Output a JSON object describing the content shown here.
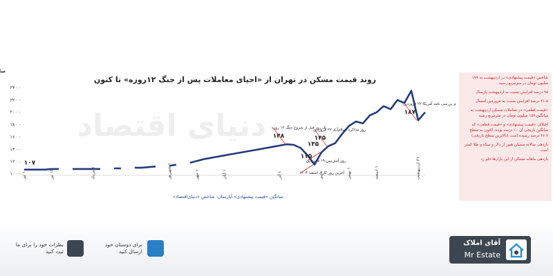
{
  "chart_data": {
    "type": "line",
    "title": "روند قیمت مسکن در تهران از «احیای معاملات پس از جنگ ۱۲روزه» تا کنون",
    "y_label": "میلیون تومان",
    "source": "میانگین «قیمت پیشنهادی» آپارتمان- شاخص «دنیای‌اقتصاد»",
    "watermark": "دنیای اقتصاد",
    "categories": [
      "۱ تیر",
      null,
      null,
      null,
      "۱۵ تیر",
      null,
      null,
      null,
      null,
      null,
      "۱ مرداد",
      null,
      null,
      null,
      null,
      null,
      null,
      null,
      null,
      null,
      null,
      "۱ شهریور",
      null,
      null,
      null,
      "۱ مهر",
      null,
      null,
      null,
      "۱ آبان",
      null,
      null,
      null,
      null,
      null,
      null,
      null,
      "۱ آذر",
      null,
      null,
      null,
      null,
      null,
      "۱ دی",
      null,
      null,
      null,
      "۱ بهمن",
      null,
      null,
      null,
      "۱ اسفند",
      null,
      null,
      null,
      null,
      null,
      "۳۱ اردیبهشت",
      null
    ],
    "values": [
      107,
      107,
      107,
      107,
      108,
      108,
      null,
      108,
      108,
      108,
      108,
      108,
      null,
      109,
      109,
      null,
      110,
      110,
      111,
      112,
      null,
      113,
      115,
      null,
      118,
      121,
      124,
      126,
      128,
      130,
      132,
      134,
      136,
      138,
      140,
      142,
      144,
      146,
      148,
      147,
      142,
      130,
      115,
      135,
      145,
      150,
      165,
      178,
      185,
      182,
      195,
      200,
      210,
      205,
      220,
      215,
      235,
      187,
      200
    ],
    "value_labels": [
      "۱۰۷",
      null,
      null,
      null,
      null,
      null,
      null,
      null,
      null,
      null,
      null,
      null,
      null,
      null,
      null,
      null,
      null,
      null,
      null,
      null,
      null,
      null,
      null,
      null,
      null,
      null,
      null,
      null,
      null,
      null,
      null,
      null,
      null,
      null,
      null,
      null,
      null,
      null,
      "۱۴۸",
      null,
      null,
      null,
      "۱۱۵",
      "۱۳۵",
      "۱۴۵",
      null,
      null,
      null,
      null,
      null,
      null,
      null,
      null,
      null,
      null,
      null,
      null,
      "۱۸۷",
      null
    ],
    "point_notes": [
      null,
      null,
      null,
      null,
      null,
      null,
      null,
      null,
      null,
      null,
      null,
      null,
      null,
      null,
      null,
      null,
      null,
      null,
      null,
      null,
      null,
      null,
      null,
      null,
      null,
      null,
      null,
      null,
      null,
      null,
      null,
      null,
      null,
      null,
      null,
      null,
      null,
      null,
      "یک روز قبل از شروع جنگ ۱۲ روزه",
      null,
      null,
      null,
      "آخرین روز کاری اسفند ۱۴۰۳",
      "روز آتش‌بس-۱۹ فروردین",
      "روز مذاکره اسلام‌آباد-۲۲ فروردین",
      null,
      null,
      null,
      null,
      null,
      null,
      null,
      null,
      null,
      null,
      null,
      null,
      "روز اعلام بررسی نامه آمریکا-۲۲ فروردین",
      null
    ],
    "color": "#233a7a",
    "ylim": [
      100,
      240
    ],
    "yticks": [
      {
        "value": 100,
        "label": "۱۰۰"
      },
      {
        "value": 120,
        "label": "۱۲۰"
      },
      {
        "value": 140,
        "label": "۱۴۰"
      },
      {
        "value": 160,
        "label": "۱۶۰"
      },
      {
        "value": 180,
        "label": "۱۸۰"
      },
      {
        "value": 200,
        "label": "۲۰۰"
      },
      {
        "value": 220,
        "label": "۲۲۰"
      },
      {
        "value": 240,
        "label": "۲۴۰"
      }
    ],
    "grid": false
  },
  "sidebar": {
    "items": [
      "شاخص «قیمت پیشنهادی» در اردیبهشت به ۱۹۹ میلیون تومان در مترمربع رسید",
      "۹۵ درصد افزایش نسبت به اردیبهشت پارسال",
      "۲۱.۵ درصد افزایش نسبت به فروردین امسال",
      "«قیمت قطعی» در معاملات مسکن اردیبهشت به میانگین ۱۵۷ میلیون تومان در مترمربع رسید",
      "اختلاف «قیمت پیشنهادی» و «قیمت قطعی» که میانگین تاریخی آن ۱۰ درصد بوده، اکنون به سطح ۲۶.۷ درصد رسیده است (بالاترین سطح تاریخی)",
      "بازدهی سالانه مسکن هنوز از دلار و سکه و طلا کمتر است",
      "بازدهی ماهانه مسکن از این بازارها جلو زد"
    ]
  },
  "footer": {
    "logo_fa": "آقای املاک",
    "logo_en": "Mr Estate",
    "share": "برای دوستان خود ارسال کنید",
    "comment": "نظرات خود را برای ما ثبت کنید"
  }
}
